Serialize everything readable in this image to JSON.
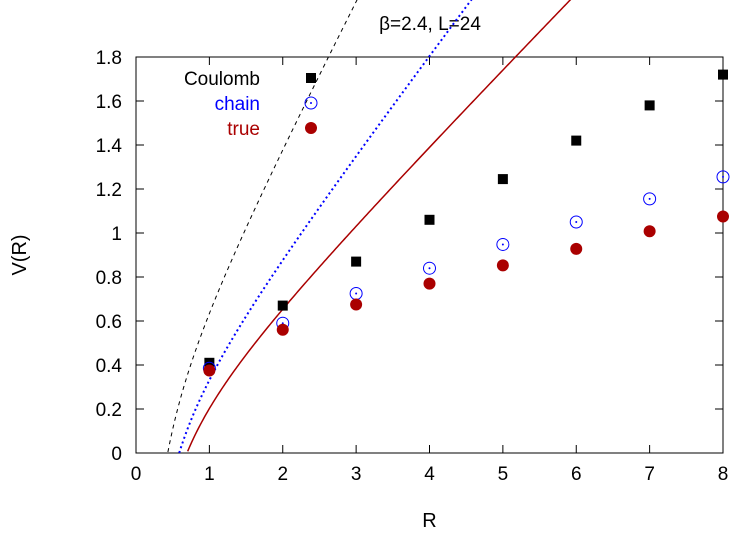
{
  "chart_data": {
    "type": "scatter",
    "title": "β=2.4, L=24",
    "xlabel": "R",
    "ylabel": "V(R)",
    "xlim": [
      0,
      8
    ],
    "ylim": [
      0,
      1.8
    ],
    "xticks": [
      "0",
      "1",
      "2",
      "3",
      "4",
      "5",
      "6",
      "7",
      "8"
    ],
    "yticks": [
      "0",
      "0.2",
      "0.4",
      "0.6",
      "0.8",
      "1",
      "1.2",
      "1.4",
      "1.6",
      "1.8"
    ],
    "legend_position": "top-left",
    "series": [
      {
        "name": "Coulomb",
        "color": "#000000",
        "marker": "filled-square",
        "x": [
          1,
          2,
          3,
          4,
          5,
          6,
          7,
          8
        ],
        "y": [
          0.41,
          0.67,
          0.87,
          1.06,
          1.245,
          1.42,
          1.58,
          1.72
        ],
        "fit": {
          "style": "dashed",
          "a": 0.64,
          "b": 0.206,
          "c": 0.2
        }
      },
      {
        "name": "chain",
        "color": "#0000ff",
        "marker": "open-circle",
        "x": [
          1,
          2,
          3,
          4,
          5,
          6,
          7,
          8
        ],
        "y": [
          0.385,
          0.59,
          0.725,
          0.84,
          0.948,
          1.05,
          1.155,
          1.255
        ],
        "fit": {
          "style": "dotted",
          "a": 0.437,
          "b": 0.216,
          "c": 0.11
        }
      },
      {
        "name": "true",
        "color": "#aa0000",
        "marker": "filled-circle",
        "x": [
          1,
          2,
          3,
          4,
          5,
          6,
          7,
          8
        ],
        "y": [
          0.375,
          0.56,
          0.675,
          0.77,
          0.853,
          0.928,
          1.008,
          1.075
        ],
        "fit": {
          "style": "solid",
          "a": 0.34,
          "b": 0.223,
          "c": 0.085
        }
      }
    ]
  }
}
